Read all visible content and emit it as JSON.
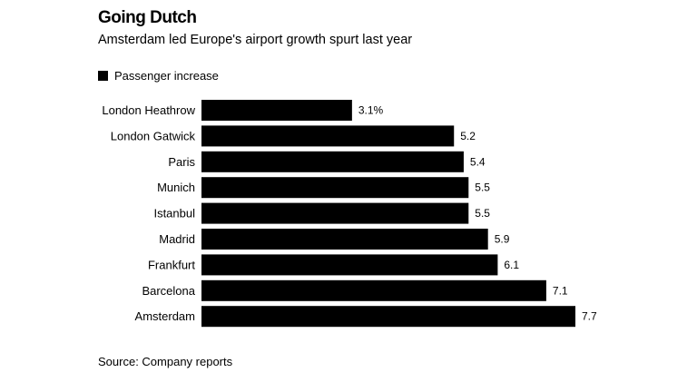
{
  "chart_data": {
    "type": "bar",
    "orientation": "horizontal",
    "title": "Going Dutch",
    "subtitle": "Amsterdam led Europe's airport growth spurt last year",
    "categories": [
      "London Heathrow",
      "London Gatwick",
      "Paris",
      "Munich",
      "Istanbul",
      "Madrid",
      "Frankfurt",
      "Barcelona",
      "Amsterdam"
    ],
    "series": [
      {
        "name": "Passenger increase",
        "values": [
          3.1,
          5.2,
          5.4,
          5.5,
          5.5,
          5.9,
          6.1,
          7.1,
          7.7
        ],
        "value_labels": [
          "3.1%",
          "5.2",
          "5.4",
          "5.5",
          "5.5",
          "5.9",
          "6.1",
          "7.1",
          "7.7"
        ],
        "color": "#000000"
      }
    ],
    "xlim": [
      0,
      7.7
    ],
    "grid": false,
    "legend_position": "top-left",
    "source": "Source: Company reports"
  }
}
